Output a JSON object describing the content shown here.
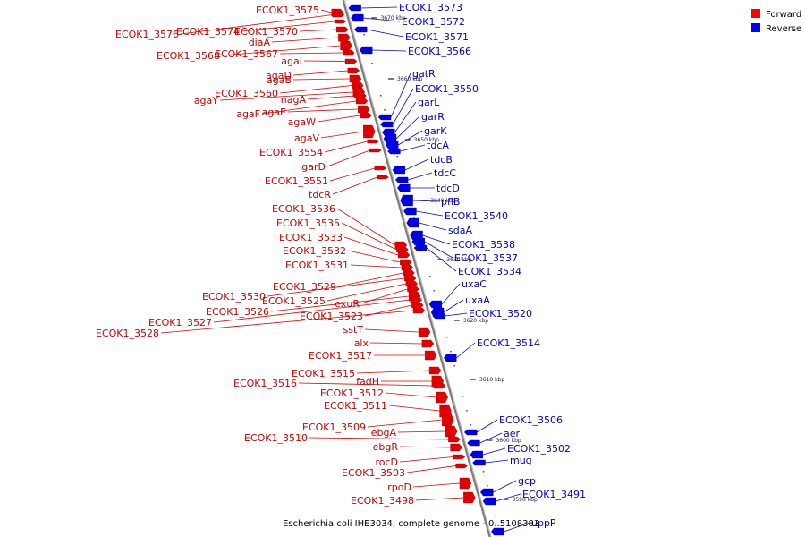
{
  "caption": "Escherichia coli IHE3034, complete genome - 0..5108383",
  "legend": [
    {
      "label": "Forward",
      "color": "#ff0000"
    },
    {
      "label": "Reverse",
      "color": "#0000ff"
    }
  ],
  "colors": {
    "forward": "#e00000",
    "reverse": "#0000e0",
    "axis": "#777777"
  },
  "ticks": [
    "3670 kbp",
    "3660 kbp",
    "3650 kbp",
    "3640 kbp",
    "3630 kbp",
    "3620 kbp",
    "3610 kbp",
    "3600 kbp",
    "3590 kbp"
  ],
  "forward_labels": [
    "ECOK1_3575",
    "ECOK1_3576",
    "ECOK1_3574",
    "ECOK1_3570",
    "diaA",
    "ECOK1_3568",
    "ECOK1_3567",
    "agaI",
    "agaD",
    "agaB",
    "ECOK1_3560",
    "agaY",
    "nagA",
    "agaF",
    "agaE",
    "agaW",
    "agaV",
    "ECOK1_3554",
    "garD",
    "ECOK1_3551",
    "tdcR",
    "ECOK1_3536",
    "ECOK1_3535",
    "ECOK1_3533",
    "ECOK1_3532",
    "ECOK1_3531",
    "ECOK1_3529",
    "ECOK1_3530",
    "ECOK1_3525",
    "exuR",
    "ECOK1_3526",
    "ECOK1_3527",
    "ECOK1_3523",
    "ECOK1_3528",
    "sstT",
    "alx",
    "ECOK1_3517",
    "ECOK1_3515",
    "fadH",
    "ECOK1_3516",
    "ECOK1_3512",
    "ECOK1_3511",
    "ECOK1_3509",
    "ebgA",
    "ECOK1_3510",
    "ebgR",
    "rocD",
    "ECOK1_3503",
    "rpoD",
    "ECOK1_3498"
  ],
  "reverse_labels": [
    "ECOK1_3573",
    "ECOK1_3572",
    "ECOK1_3571",
    "ECOK1_3566",
    "gatR",
    "ECOK1_3550",
    "garL",
    "garR",
    "garK",
    "tdcA",
    "tdcB",
    "tdcC",
    "tdcD",
    "pflB",
    "ECOK1_3540",
    "sdaA",
    "ECOK1_3538",
    "ECOK1_3537",
    "ECOK1_3534",
    "uxaC",
    "uxaA",
    "ECOK1_3520",
    "ECOK1_3514",
    "ECOK1_3506",
    "aer",
    "ECOK1_3502",
    "mug",
    "gcp",
    "ECOK1_3491",
    "uppP"
  ]
}
